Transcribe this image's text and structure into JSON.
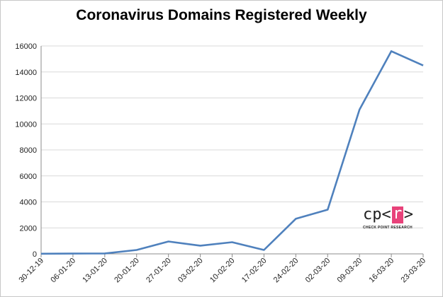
{
  "chart_data": {
    "type": "line",
    "title": "Coronavirus Domains Registered Weekly",
    "xlabel": "",
    "ylabel": "",
    "categories": [
      "30-12-19",
      "06-01-20",
      "13-01-20",
      "20-01-20",
      "27-01-20",
      "03-02-20",
      "10-02-20",
      "17-02-20",
      "24-02-20",
      "02-03-20",
      "09-03-20",
      "16-03-20",
      "23-03-20"
    ],
    "series": [
      {
        "values": [
          10,
          20,
          30,
          300,
          950,
          630,
          900,
          300,
          2700,
          3400,
          11100,
          15600,
          14500
        ]
      }
    ],
    "ylim": [
      0,
      16000
    ],
    "yticks": [
      0,
      2000,
      4000,
      6000,
      8000,
      10000,
      12000,
      14000,
      16000
    ],
    "grid": true,
    "legend": "none",
    "line_color": "#4f81bd"
  },
  "logo": {
    "left": "cp",
    "box": "r",
    "lt": "<",
    "gt": ">",
    "caption": "CHECK POINT RESEARCH",
    "accent": "#e8427a"
  }
}
